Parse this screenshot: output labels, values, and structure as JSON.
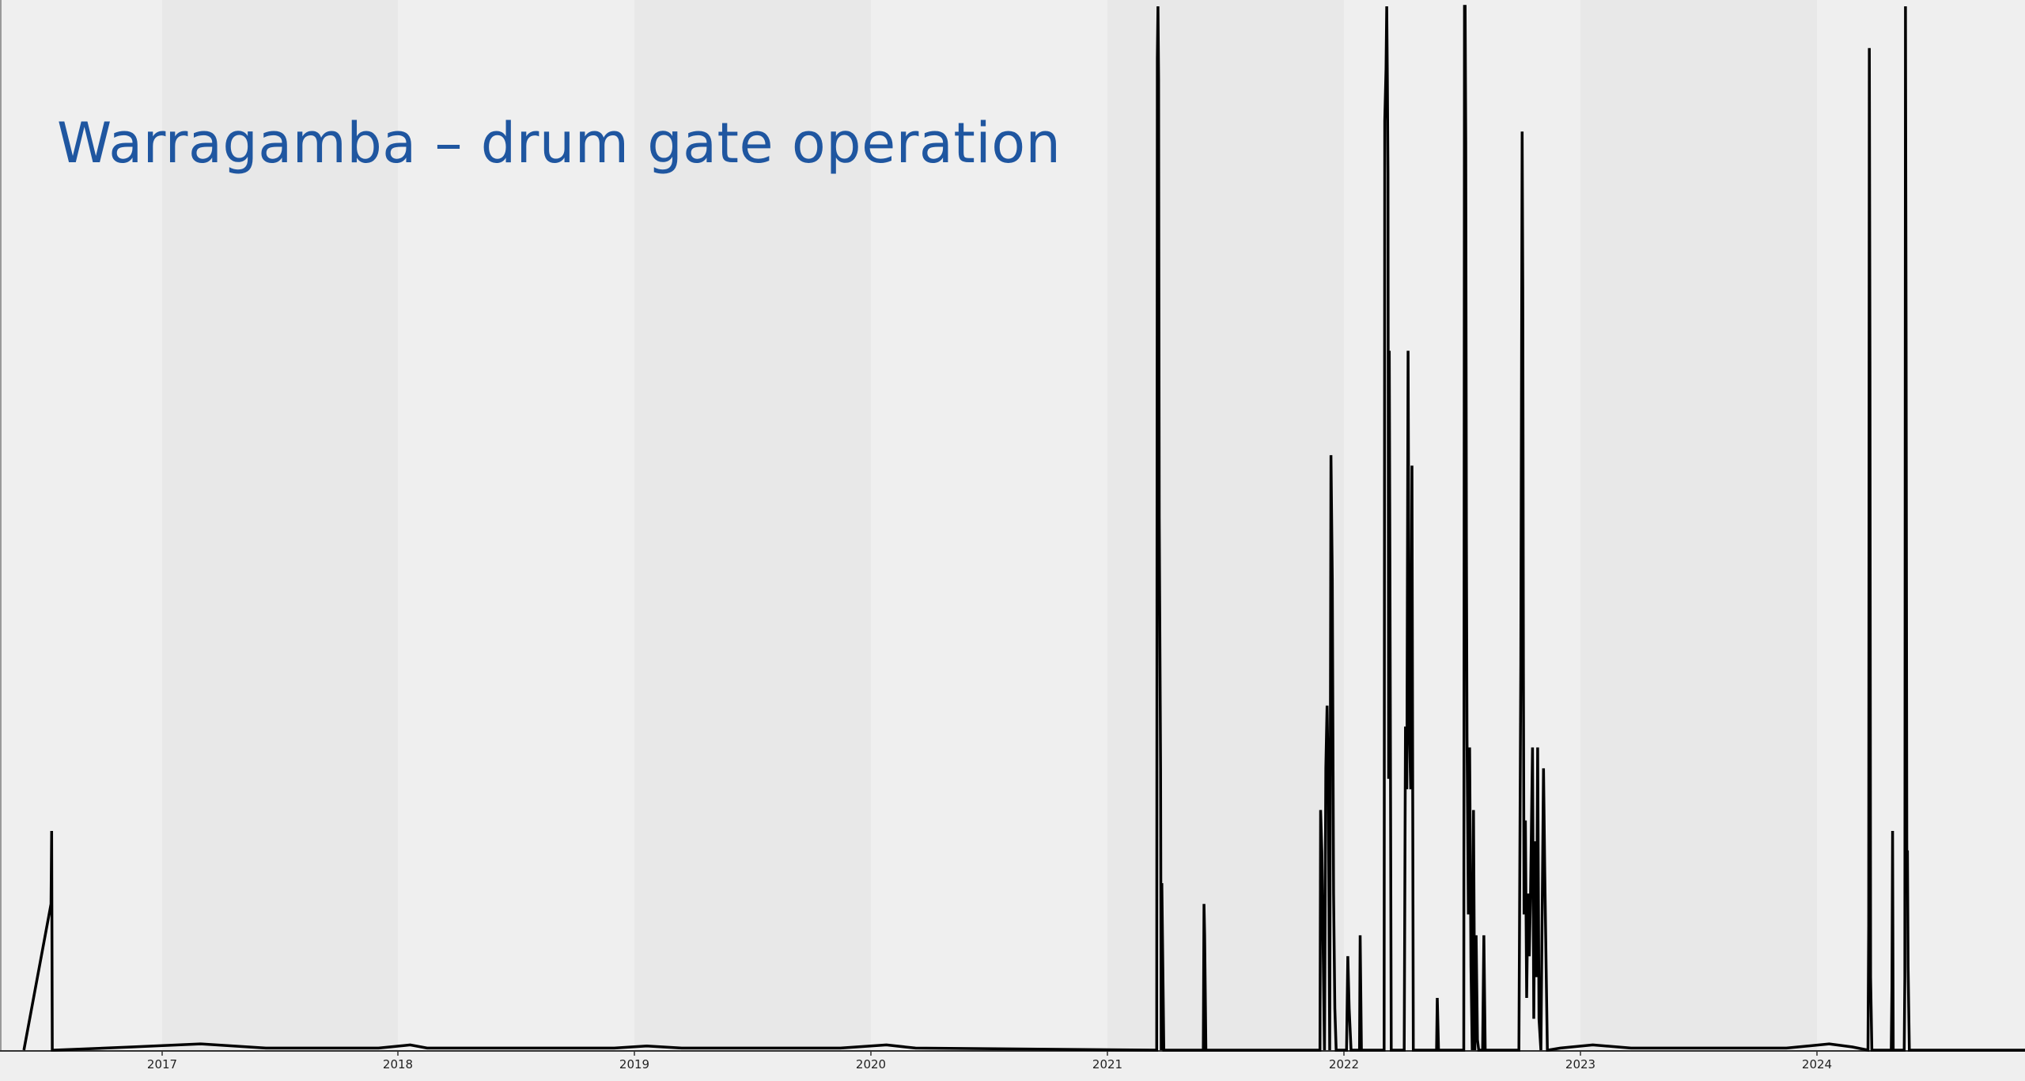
{
  "colors": {
    "background": "#efefef",
    "band_light": "#efefef",
    "band_dark": "#e8e8e8",
    "line": "#000000",
    "title": "#1f56a0"
  },
  "chart_data": {
    "type": "line",
    "title": "Warragamba – drum gate operation",
    "xlabel": "",
    "ylabel": "",
    "xlim": [
      "2016-06-01",
      "2024-12-31"
    ],
    "ylim": [
      0,
      100
    ],
    "x_tick_labels": [
      "2017",
      "2018",
      "2019",
      "2020",
      "2021",
      "2022",
      "2023",
      "2024"
    ],
    "grid": "alternating vertical year bands",
    "legend": "none",
    "series": [
      {
        "x": [
          "2016-06-01",
          "2016-07-13",
          "2016-07-14",
          "2016-07-15",
          "2016-07-17",
          "2016-07-18",
          "2016-11-15",
          "2017-03-01",
          "2017-06-10",
          "2017-12-01",
          "2018-01-20",
          "2018-02-15",
          "2018-12-01",
          "2019-01-20",
          "2019-03-15",
          "2019-11-15",
          "2020-01-25",
          "2020-03-10",
          "2021-03-18",
          "2021-03-19",
          "2021-03-20",
          "2021-03-21",
          "2021-03-22",
          "2021-03-24",
          "2021-03-25",
          "2021-03-26",
          "2021-03-29",
          "2021-05-29",
          "2021-05-30",
          "2021-05-31",
          "2021-06-02",
          "2021-11-25",
          "2021-11-26",
          "2021-11-28",
          "2021-12-02",
          "2021-12-04",
          "2021-12-06",
          "2021-12-08",
          "2021-12-10",
          "2021-12-12",
          "2021-12-14",
          "2021-12-16",
          "2021-12-18",
          "2021-12-20",
          "2022-01-05",
          "2022-01-07",
          "2022-01-09",
          "2022-01-12",
          "2022-01-25",
          "2022-01-26",
          "2022-01-28",
          "2022-03-04",
          "2022-03-05",
          "2022-03-07",
          "2022-03-08",
          "2022-03-09",
          "2022-03-10",
          "2022-03-11",
          "2022-03-12",
          "2022-03-13",
          "2022-03-15",
          "2022-03-18",
          "2022-04-04",
          "2022-04-06",
          "2022-04-08",
          "2022-04-10",
          "2022-04-12",
          "2022-04-14",
          "2022-04-16",
          "2022-04-18",
          "2022-05-24",
          "2022-05-25",
          "2022-05-27",
          "2022-07-05",
          "2022-07-06",
          "2022-07-07",
          "2022-07-08",
          "2022-07-09",
          "2022-07-10",
          "2022-07-12",
          "2022-07-14",
          "2022-07-16",
          "2022-07-18",
          "2022-07-20",
          "2022-07-22",
          "2022-07-24",
          "2022-07-26",
          "2022-07-28",
          "2022-08-03",
          "2022-08-05",
          "2022-08-07",
          "2022-09-28",
          "2022-10-01",
          "2022-10-03",
          "2022-10-04",
          "2022-10-05",
          "2022-10-06",
          "2022-10-08",
          "2022-10-10",
          "2022-10-12",
          "2022-10-14",
          "2022-10-16",
          "2022-10-19",
          "2022-10-21",
          "2022-10-23",
          "2022-10-25",
          "2022-10-27",
          "2022-10-29",
          "2022-11-01",
          "2022-11-05",
          "2022-11-07",
          "2022-11-09",
          "2022-11-11",
          "2022-11-12",
          "2022-12-01",
          "2023-01-20",
          "2023-03-20",
          "2023-11-15",
          "2024-01-20",
          "2024-02-25",
          "2024-03-20",
          "2024-03-21",
          "2024-03-22",
          "2024-03-23",
          "2024-03-24",
          "2024-03-26",
          "2024-04-25",
          "2024-04-26",
          "2024-04-27",
          "2024-04-28",
          "2024-05-15",
          "2024-05-16",
          "2024-05-17",
          "2024-05-18",
          "2024-05-19",
          "2024-05-20",
          "2024-05-21",
          "2024-05-23",
          "2024-05-26",
          "2024-06-15",
          "2024-12-31"
        ],
        "y": [
          0,
          14,
          21,
          0,
          0,
          0,
          0.3,
          0.6,
          0.2,
          0.2,
          0.5,
          0.2,
          0.2,
          0.4,
          0.2,
          0.2,
          0.5,
          0.2,
          0,
          95,
          100,
          93,
          51,
          27,
          0,
          16,
          0,
          0,
          14,
          11,
          0,
          0,
          23,
          19,
          0,
          27,
          33,
          25,
          0,
          57,
          45,
          15,
          4,
          0,
          0,
          9,
          4,
          0,
          0,
          11,
          0,
          0,
          89,
          94,
          100,
          93,
          84,
          26,
          67,
          45,
          0,
          0,
          0,
          31,
          25,
          67,
          31,
          25,
          56,
          0,
          0,
          5,
          0,
          0,
          100,
          100,
          87,
          49,
          30,
          13,
          29,
          8,
          0,
          23,
          0,
          11,
          1,
          0,
          0,
          11,
          0,
          0,
          37,
          88,
          73,
          36,
          13,
          22,
          5,
          15,
          9,
          15,
          29,
          3,
          20,
          7,
          29,
          3,
          0,
          27,
          17,
          8,
          0,
          0,
          0.2,
          0.5,
          0.2,
          0.2,
          0.6,
          0.3,
          0,
          12,
          96,
          65,
          7,
          0,
          0,
          6,
          21,
          0,
          0,
          7,
          100,
          68,
          19,
          19,
          8,
          0,
          0,
          0,
          0
        ]
      }
    ]
  }
}
